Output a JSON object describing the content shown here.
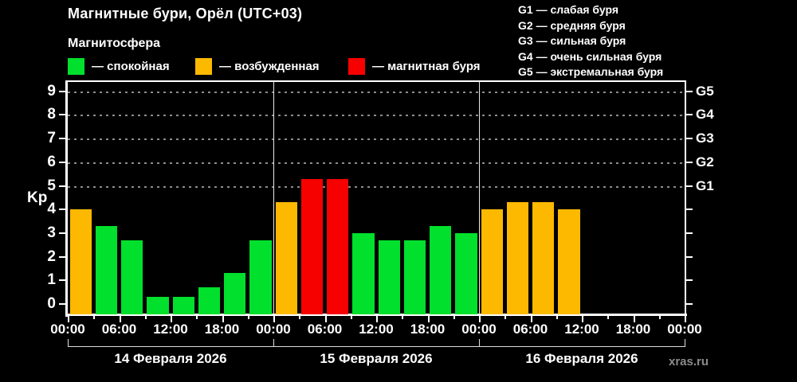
{
  "header": {
    "title": "Магнитные бури, Орёл (UTC+03)",
    "subtitle": "Магнитосфера",
    "legend": [
      {
        "name": "quiet",
        "color": "#00e02c",
        "label": "— спокойная"
      },
      {
        "name": "excited",
        "color": "#fdb900",
        "label": "— возбужденная"
      },
      {
        "name": "storm",
        "color": "#f70000",
        "label": "— магнитная буря"
      }
    ]
  },
  "g_legend": [
    "G1 — слабая буря",
    "G2 — средняя буря",
    "G3 — сильная буря",
    "G4 — очень сильная буря",
    "G5 — экстремальная буря"
  ],
  "watermark": "xras.ru",
  "chart_data": {
    "type": "bar",
    "title": "Магнитные бури, Орёл (UTC+03)",
    "ylabel": "Kp",
    "ylim": [
      0,
      9
    ],
    "y_ticks": [
      0,
      1,
      2,
      3,
      4,
      5,
      6,
      7,
      8,
      9
    ],
    "grid_kp_levels": [
      5,
      6,
      7,
      8,
      9
    ],
    "right_axis_labels": [
      {
        "label": "G1",
        "kp": 5
      },
      {
        "label": "G2",
        "kp": 6
      },
      {
        "label": "G3",
        "kp": 7
      },
      {
        "label": "G4",
        "kp": 8
      },
      {
        "label": "G5",
        "kp": 9
      }
    ],
    "time_ticks": [
      "00:00",
      "06:00",
      "12:00",
      "18:00",
      "00:00",
      "06:00",
      "12:00",
      "18:00",
      "00:00",
      "06:00",
      "12:00",
      "18:00",
      "00:00"
    ],
    "colors": {
      "green": "#00e02c",
      "orange": "#fdb900",
      "red": "#f70000"
    },
    "legend_meaning": {
      "green": "спокойная",
      "orange": "возбужденная",
      "red": "магнитная буря"
    },
    "days": [
      {
        "date": "14 Февраля 2026",
        "values": [
          4.0,
          3.3,
          2.7,
          0.3,
          0.3,
          0.7,
          1.3,
          2.7
        ],
        "levels": [
          "orange",
          "green",
          "green",
          "green",
          "green",
          "green",
          "green",
          "green"
        ]
      },
      {
        "date": "15 Февраля 2026",
        "values": [
          4.3,
          5.3,
          5.3,
          3.0,
          2.7,
          2.7,
          3.3,
          3.0
        ],
        "levels": [
          "orange",
          "red",
          "red",
          "green",
          "green",
          "green",
          "green",
          "green"
        ]
      },
      {
        "date": "16 Февраля 2026",
        "values": [
          4.0,
          4.3,
          4.3,
          4.0,
          null,
          null,
          null,
          null
        ],
        "levels": [
          "orange",
          "orange",
          "orange",
          "orange",
          null,
          null,
          null,
          null
        ]
      }
    ]
  }
}
